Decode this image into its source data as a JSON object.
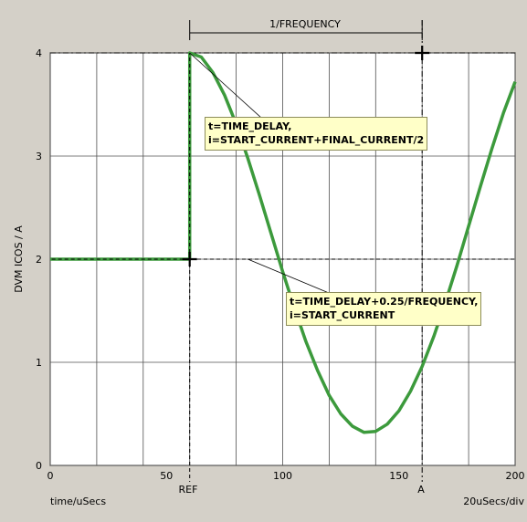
{
  "chart_data": {
    "type": "line",
    "title": "",
    "xlabel": "time/uSecs",
    "ylabel": "DVM ICOS / A",
    "xlim": [
      0,
      200
    ],
    "ylim": [
      0,
      4
    ],
    "x_ticks": [
      0,
      50,
      100,
      150,
      200
    ],
    "y_ticks": [
      0,
      1,
      2,
      3,
      4
    ],
    "grid": true,
    "scale_label": "20uSecs/div",
    "series": [
      {
        "color": "#3c9a3c",
        "points": [
          [
            0,
            2
          ],
          [
            60,
            2
          ],
          [
            60,
            4
          ],
          [
            65,
            3.96
          ],
          [
            70,
            3.81
          ],
          [
            75,
            3.59
          ],
          [
            80,
            3.31
          ],
          [
            85,
            2.98
          ],
          [
            90,
            2.62
          ],
          [
            95,
            2.25
          ],
          [
            100,
            1.88
          ],
          [
            105,
            1.53
          ],
          [
            110,
            1.2
          ],
          [
            115,
            0.92
          ],
          [
            120,
            0.68
          ],
          [
            125,
            0.5
          ],
          [
            130,
            0.38
          ],
          [
            135,
            0.32
          ],
          [
            140,
            0.33
          ],
          [
            145,
            0.4
          ],
          [
            150,
            0.53
          ],
          [
            155,
            0.72
          ],
          [
            160,
            0.96
          ],
          [
            165,
            1.25
          ],
          [
            170,
            1.58
          ],
          [
            175,
            1.94
          ],
          [
            180,
            2.32
          ],
          [
            185,
            2.7
          ],
          [
            190,
            3.07
          ],
          [
            195,
            3.42
          ],
          [
            200,
            3.72
          ]
        ]
      }
    ],
    "markers": {
      "ref": {
        "x": 60,
        "y": 2,
        "label": "REF"
      },
      "a": {
        "x": 160,
        "y": 4,
        "label": "A"
      },
      "dim_label": "1/FREQUENCY"
    },
    "annotations": [
      {
        "line1": "t=TIME_DELAY,",
        "line2": "i=START_CURRENT+FINAL_CURRENT/2",
        "target_x": 60,
        "target_y": 4
      },
      {
        "line1": "t=TIME_DELAY+0.25/FREQUENCY,",
        "line2": "i=START_CURRENT",
        "target_x": 85,
        "target_y": 2
      }
    ]
  }
}
